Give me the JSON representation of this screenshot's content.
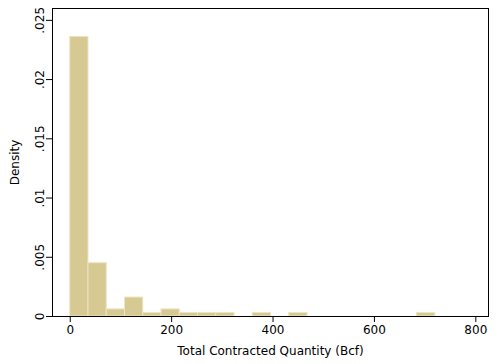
{
  "chart_data": {
    "type": "histogram",
    "xlabel": "Total Contracted Quantity (Bcf)",
    "ylabel": "Density",
    "bins": [
      0,
      36,
      72,
      108,
      144,
      180,
      216,
      252,
      288,
      324,
      360,
      396,
      432,
      468,
      504,
      540,
      576,
      612,
      648,
      684,
      720
    ],
    "values": [
      0.0236,
      0.0045,
      0.0006,
      0.0016,
      0.0003,
      0.0006,
      0.0003,
      0.0003,
      0.0003,
      0,
      0.0003,
      0,
      0.0003,
      0,
      0,
      0,
      0,
      0,
      0,
      0.0003
    ],
    "color": "#d6ca92",
    "xlim": [
      -35,
      825
    ],
    "xticks": [
      0,
      200,
      400,
      600,
      800
    ],
    "ylim": [
      0,
      0.026
    ],
    "yticks": [
      0,
      {
        "value": 0.005,
        "label": ".005"
      },
      {
        "value": 0.01,
        "label": ".01"
      },
      {
        "value": 0.015,
        "label": ".015"
      },
      {
        "value": 0.02,
        "label": ".02"
      },
      {
        "value": 0.025,
        "label": ".025"
      }
    ],
    "grid": false
  }
}
